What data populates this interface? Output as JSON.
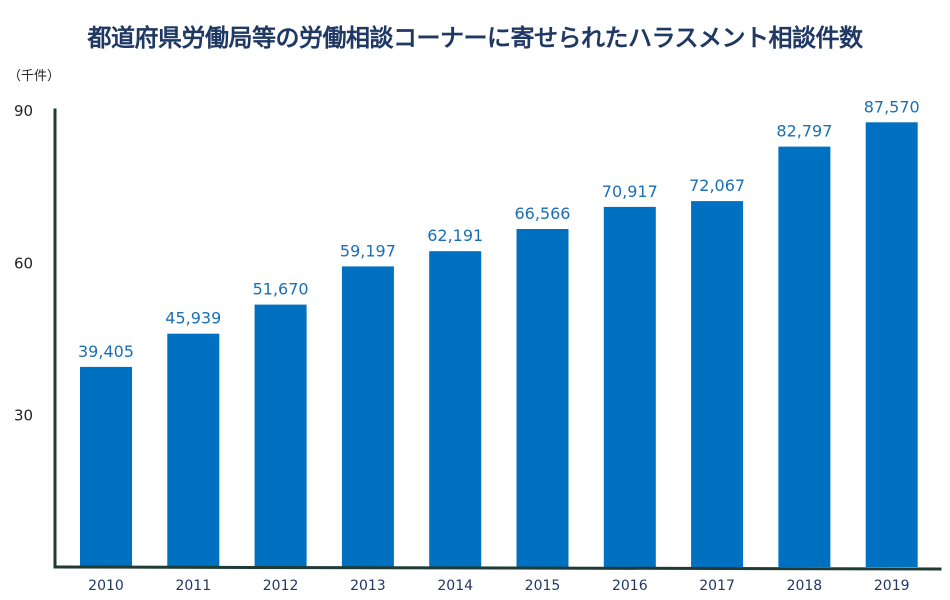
{
  "chart_data": {
    "type": "bar",
    "title": "都道府県労働局等の労働相談コーナーに寄せられたハラスメント相談件数",
    "unit_label": "（千件）",
    "categories": [
      "2010",
      "2011",
      "2012",
      "2013",
      "2014",
      "2015",
      "2016",
      "2017",
      "2018",
      "2019"
    ],
    "values": [
      39.405,
      45.939,
      51.67,
      59.197,
      62.191,
      66.566,
      70.917,
      72.067,
      82.797,
      87.57
    ],
    "data_labels": [
      "39,405",
      "45,939",
      "51,670",
      "59,197",
      "62,191",
      "66,566",
      "70,917",
      "72,067",
      "82,797",
      "87,570"
    ],
    "yticks": [
      "30",
      "60",
      "90"
    ],
    "ylim": [
      0,
      90
    ],
    "grid": false,
    "legend": "none",
    "colors": {
      "bar": "#0070c0",
      "axis": "#1f3b35",
      "title": "#1f3864",
      "data_label": "#1a6fb5"
    }
  }
}
